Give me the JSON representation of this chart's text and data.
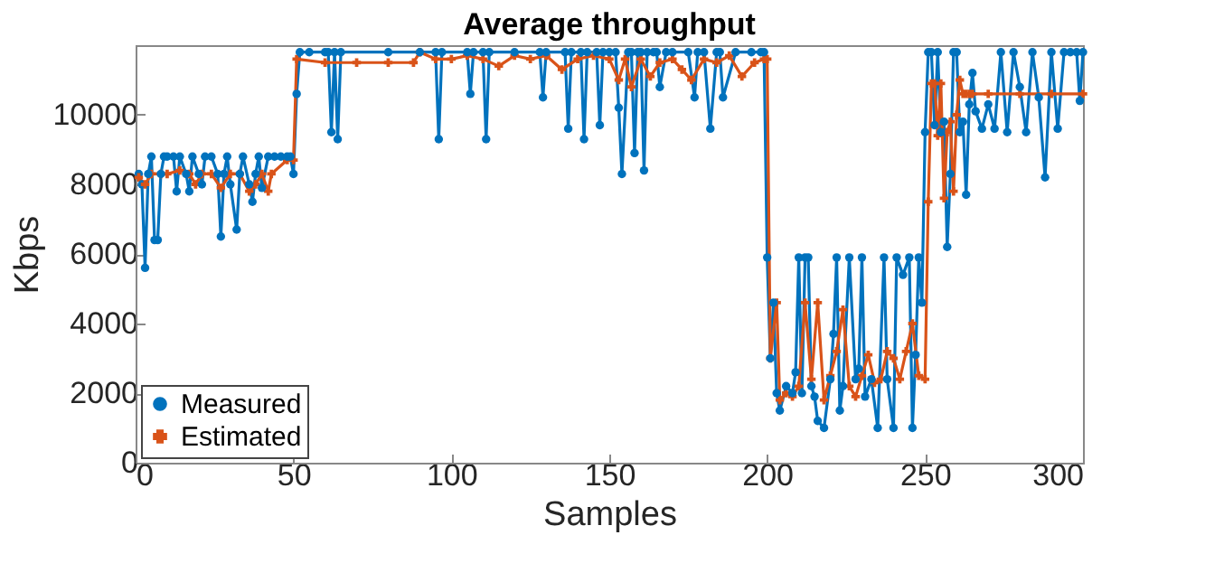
{
  "chart_data": {
    "type": "line",
    "title": "Average throughput",
    "xlabel": "Samples",
    "ylabel": "Kbps",
    "xlim": [
      0,
      300
    ],
    "xticks": [
      0,
      50,
      100,
      150,
      200,
      250,
      300
    ],
    "ylim": [
      0,
      12000
    ],
    "yticks": [
      0,
      2000,
      4000,
      6000,
      8000,
      10000
    ],
    "grid": false,
    "legend": "bottom left",
    "series": [
      {
        "name": "Measured",
        "color": "#0072bd",
        "marker": "circle",
        "x": [
          1,
          2,
          3,
          4,
          5,
          6,
          7,
          8,
          9,
          10,
          12,
          13,
          14,
          16,
          17,
          18,
          20,
          21,
          22,
          24,
          26,
          27,
          28,
          29,
          30,
          32,
          33,
          34,
          36,
          37,
          38,
          39,
          40,
          42,
          44,
          46,
          48,
          49,
          50,
          51,
          52,
          55,
          60,
          61,
          62,
          63,
          64,
          65,
          80,
          90,
          95,
          96,
          97,
          105,
          106,
          107,
          110,
          111,
          112,
          120,
          128,
          129,
          130,
          136,
          137,
          138,
          141,
          142,
          143,
          146,
          147,
          148,
          150,
          152,
          153,
          154,
          156,
          157,
          158,
          159,
          160,
          161,
          162,
          164,
          165,
          166,
          168,
          170,
          175,
          177,
          178,
          180,
          182,
          184,
          185,
          186,
          190,
          195,
          198,
          199,
          200,
          201,
          202,
          203,
          204,
          206,
          208,
          209,
          210,
          211,
          212,
          213,
          214,
          215,
          216,
          218,
          220,
          221,
          222,
          223,
          224,
          226,
          228,
          229,
          230,
          231,
          233,
          235,
          237,
          238,
          240,
          241,
          243,
          245,
          246,
          247,
          248,
          249,
          250,
          251,
          252,
          253,
          254,
          255,
          256,
          257,
          258,
          259,
          260,
          261,
          262,
          263,
          264,
          265,
          266,
          268,
          270,
          272,
          274,
          276,
          278,
          280,
          282,
          284,
          286,
          288,
          290,
          292,
          294,
          296,
          298,
          299,
          300
        ],
        "values": [
          8300,
          8000,
          5600,
          8300,
          8800,
          6400,
          6400,
          8300,
          8800,
          8800,
          8800,
          7800,
          8800,
          8300,
          7800,
          8800,
          8300,
          8000,
          8800,
          8800,
          8300,
          6500,
          8300,
          8800,
          8000,
          6700,
          8300,
          8800,
          8000,
          7500,
          8300,
          8800,
          7900,
          8800,
          8800,
          8800,
          8800,
          8800,
          8300,
          10600,
          11800,
          11800,
          11800,
          11800,
          9500,
          11800,
          9300,
          11800,
          11800,
          11800,
          11800,
          9300,
          11800,
          11800,
          10600,
          11800,
          11800,
          9300,
          11800,
          11800,
          11800,
          10500,
          11800,
          11800,
          9600,
          11800,
          11800,
          9300,
          11800,
          11800,
          9700,
          11800,
          11800,
          11800,
          10200,
          8300,
          11800,
          11800,
          8900,
          11800,
          11800,
          8400,
          11800,
          11800,
          11800,
          10800,
          11800,
          11800,
          11800,
          10500,
          11800,
          11800,
          9600,
          11800,
          11800,
          10500,
          11800,
          11800,
          11800,
          11800,
          5900,
          3000,
          4600,
          2000,
          1500,
          2200,
          2000,
          2600,
          5900,
          2000,
          5900,
          5900,
          2200,
          1900,
          1200,
          1000,
          2400,
          3700,
          5900,
          1500,
          2200,
          5900,
          2400,
          2700,
          5900,
          1900,
          2400,
          1000,
          5900,
          2400,
          1000,
          5900,
          5400,
          5900,
          1000,
          3100,
          5900,
          4600,
          9500,
          11800,
          11800,
          9700,
          11800,
          9500,
          9800,
          6200,
          8300,
          11800,
          11800,
          9500,
          9800,
          7700,
          10300,
          11200,
          10100,
          9600,
          10300,
          9600,
          11800,
          9500,
          11800,
          10800,
          9500,
          11800,
          10500,
          8200,
          11800,
          9600,
          11800,
          11800,
          11800,
          10400,
          11800
        ]
      },
      {
        "name": "Estimated",
        "color": "#d95319",
        "marker": "cross",
        "x": [
          1,
          3,
          5,
          8,
          10,
          14,
          17,
          19,
          21,
          24,
          27,
          30,
          33,
          36,
          38,
          40,
          42,
          43,
          48,
          50,
          51,
          60,
          70,
          80,
          88,
          90,
          95,
          100,
          105,
          110,
          115,
          120,
          125,
          130,
          135,
          140,
          145,
          150,
          153,
          155,
          157,
          160,
          163,
          166,
          170,
          173,
          176,
          180,
          184,
          188,
          192,
          196,
          199,
          200,
          201,
          203,
          204,
          206,
          208,
          210,
          212,
          214,
          216,
          218,
          220,
          222,
          224,
          226,
          228,
          230,
          232,
          234,
          236,
          238,
          240,
          242,
          244,
          246,
          248,
          250,
          251,
          252,
          253,
          254,
          255,
          256,
          257,
          258,
          259,
          260,
          261,
          262,
          263,
          264,
          265,
          270,
          280,
          290,
          300
        ],
        "values": [
          8200,
          8000,
          8300,
          8300,
          8300,
          8400,
          8300,
          8000,
          8300,
          8300,
          7900,
          8300,
          8300,
          7800,
          8000,
          8300,
          7800,
          8300,
          8700,
          8700,
          11600,
          11500,
          11500,
          11500,
          11500,
          11800,
          11600,
          11600,
          11700,
          11600,
          11400,
          11700,
          11600,
          11700,
          11300,
          11600,
          11700,
          11600,
          11000,
          11600,
          10800,
          11600,
          11100,
          11500,
          11600,
          11300,
          11000,
          11600,
          11500,
          11700,
          11100,
          11500,
          11600,
          11600,
          3000,
          4600,
          1800,
          2000,
          1900,
          2200,
          4600,
          2400,
          4600,
          1800,
          2500,
          3200,
          4400,
          2200,
          1900,
          2500,
          3100,
          2300,
          2400,
          3200,
          3000,
          2400,
          3200,
          4000,
          2500,
          2400,
          7500,
          10900,
          10900,
          9400,
          10900,
          7600,
          9500,
          9800,
          7800,
          10000,
          11000,
          10600,
          10600,
          10600,
          10600,
          10600,
          10600,
          10600,
          10600
        ]
      }
    ]
  }
}
